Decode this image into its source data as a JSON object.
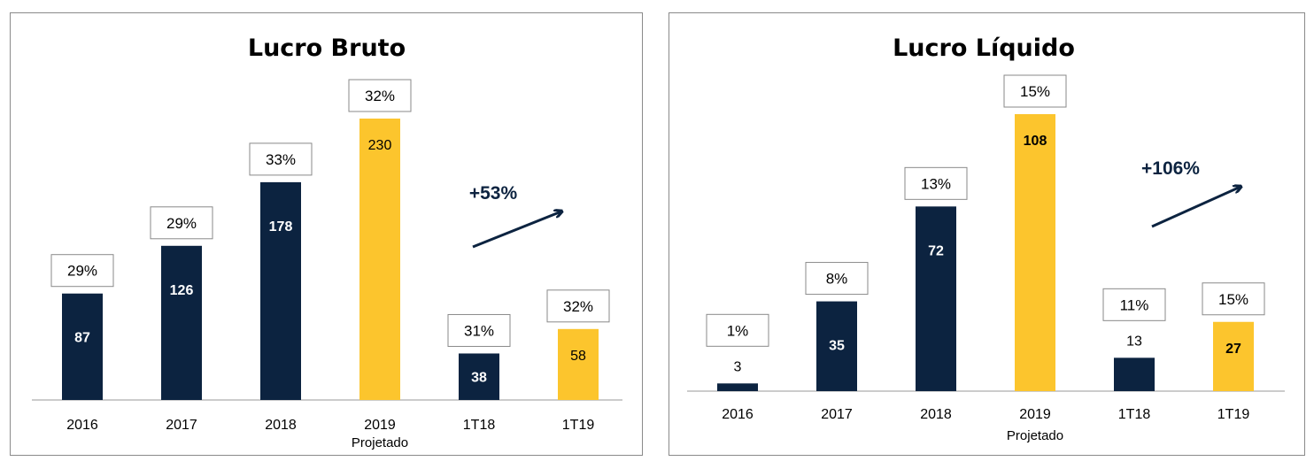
{
  "colors": {
    "navy": "#0c2340",
    "gold": "#fcc52d",
    "baseline": "#bcbcbc"
  },
  "chart_data": [
    {
      "type": "bar",
      "title": "Lucro Bruto",
      "categories": [
        "2016",
        "2017",
        "2018",
        "2019",
        "1T18",
        "1T19"
      ],
      "category_sublabels": [
        "",
        "",
        "",
        "Projetado",
        "",
        ""
      ],
      "values": [
        87,
        126,
        178,
        230,
        38,
        58
      ],
      "margins": [
        "29%",
        "29%",
        "33%",
        "32%",
        "31%",
        "32%"
      ],
      "bar_colors": [
        "navy",
        "navy",
        "navy",
        "gold",
        "navy",
        "gold"
      ],
      "growth_label": "+53%",
      "xlabel": "",
      "ylabel": "",
      "ylim": [
        0,
        230
      ],
      "grid": false
    },
    {
      "type": "bar",
      "title": "Lucro Líquido",
      "categories": [
        "2016",
        "2017",
        "2018",
        "2019",
        "1T18",
        "1T19"
      ],
      "category_sublabels": [
        "",
        "",
        "",
        "Projetado",
        "",
        ""
      ],
      "values": [
        3,
        35,
        72,
        108,
        13,
        27
      ],
      "margins": [
        "1%",
        "8%",
        "13%",
        "15%",
        "11%",
        "15%"
      ],
      "bar_colors": [
        "navy",
        "navy",
        "navy",
        "gold",
        "navy",
        "gold"
      ],
      "growth_label": "+106%",
      "xlabel": "",
      "ylabel": "",
      "ylim": [
        0,
        108
      ],
      "grid": false
    }
  ]
}
